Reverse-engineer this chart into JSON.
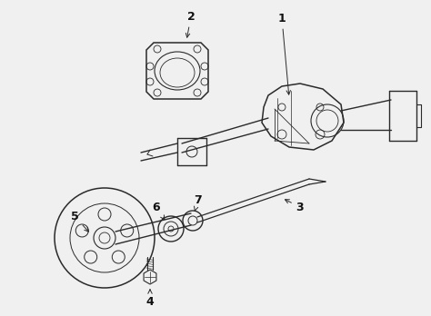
{
  "background_color": "#f0f0f0",
  "line_color": "#2a2a2a",
  "line_width": 1.0,
  "label_color": "#111111",
  "label_fontsize": 9,
  "figsize": [
    4.74,
    3.48
  ],
  "dpi": 100
}
